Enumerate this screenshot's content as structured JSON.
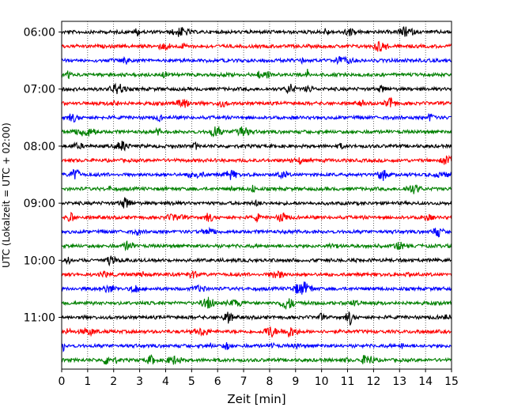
{
  "chart_data": {
    "type": "line",
    "title": "",
    "xlabel": "Zeit  [min]",
    "ylabel": "UTC (Lokalzeit = UTC + 02:00)",
    "xlim": [
      0,
      15
    ],
    "x_ticks": [
      0,
      1,
      2,
      3,
      4,
      5,
      6,
      7,
      8,
      9,
      10,
      11,
      12,
      13,
      14,
      15
    ],
    "x_tick_labels": [
      "0",
      "1",
      "2",
      "3",
      "4",
      "5",
      "6",
      "7",
      "8",
      "9",
      "10",
      "11",
      "12",
      "13",
      "14",
      "15"
    ],
    "y_tick_labels": [
      "06:00",
      "07:00",
      "08:00",
      "09:00",
      "10:00",
      "11:00"
    ],
    "y_tick_rows": [
      0,
      4,
      8,
      12,
      16,
      20
    ],
    "grid_x": true,
    "trace_colors": [
      "#000000",
      "#ff0000",
      "#0000ff",
      "#008000"
    ],
    "trace_count": 24,
    "trace_interval_min": 15
  }
}
